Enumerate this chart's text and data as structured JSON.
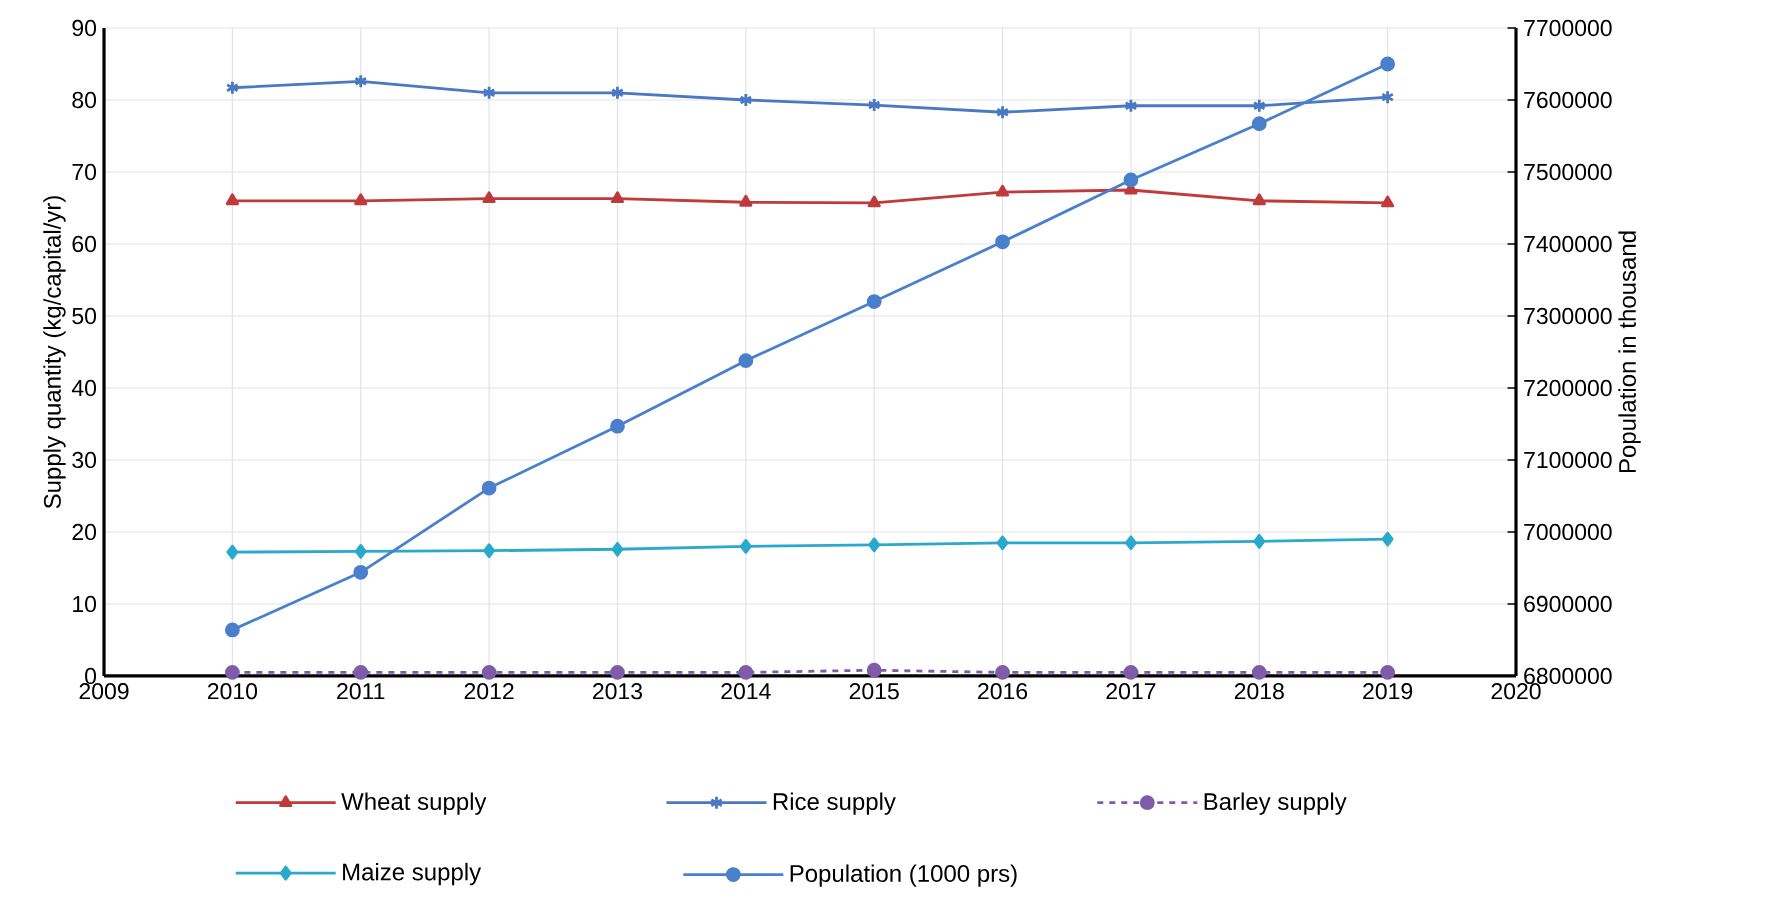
{
  "chart_data": {
    "type": "line",
    "ylabel": "Supply quantity (kg/capital/yr)",
    "y2label": "Population in thousand",
    "x": [
      2010,
      2011,
      2012,
      2013,
      2014,
      2015,
      2016,
      2017,
      2018,
      2019
    ],
    "xlim": [
      2009,
      2020
    ],
    "xticks": [
      2009,
      2010,
      2011,
      2012,
      2013,
      2014,
      2015,
      2016,
      2017,
      2018,
      2019,
      2020
    ],
    "ylim": [
      0,
      90
    ],
    "yticks": [
      0,
      10,
      20,
      30,
      40,
      50,
      60,
      70,
      80,
      90
    ],
    "y2lim": [
      6800000,
      7700000
    ],
    "y2ticks": [
      6800000,
      6900000,
      7000000,
      7100000,
      7200000,
      7300000,
      7400000,
      7500000,
      7600000,
      7700000
    ],
    "grid": true,
    "legend": "bottom",
    "series": [
      {
        "name": "Wheat supply",
        "color": "#c0393b",
        "marker": "triangle",
        "values": [
          66,
          66,
          66.3,
          66.3,
          65.8,
          65.7,
          67.2,
          67.5,
          66,
          65.7
        ]
      },
      {
        "name": "Rice supply",
        "color": "#4a78c2",
        "marker": "cross",
        "values": [
          81.7,
          82.6,
          81,
          81,
          80,
          79.3,
          78.3,
          79.2,
          79.2,
          80.4
        ]
      },
      {
        "name": "Barley supply",
        "color": "#7f5ca8",
        "marker": "circle",
        "line_style": "dashed",
        "values": [
          0.5,
          0.5,
          0.5,
          0.5,
          0.5,
          0.8,
          0.5,
          0.5,
          0.5,
          0.5
        ]
      },
      {
        "name": "Maize supply",
        "color": "#2aa9cc",
        "marker": "diamond",
        "values": [
          17.2,
          17.3,
          17.4,
          17.6,
          18,
          18.2,
          18.5,
          18.5,
          18.7,
          19
        ]
      },
      {
        "name": "Population (1000 prs)",
        "color": "#4a7fcc",
        "marker": "circle",
        "axis": "y2",
        "values": [
          6864000,
          6944000,
          7061000,
          7147000,
          7238000,
          7320000,
          7403000,
          7489000,
          7567000,
          7650000
        ]
      }
    ]
  }
}
